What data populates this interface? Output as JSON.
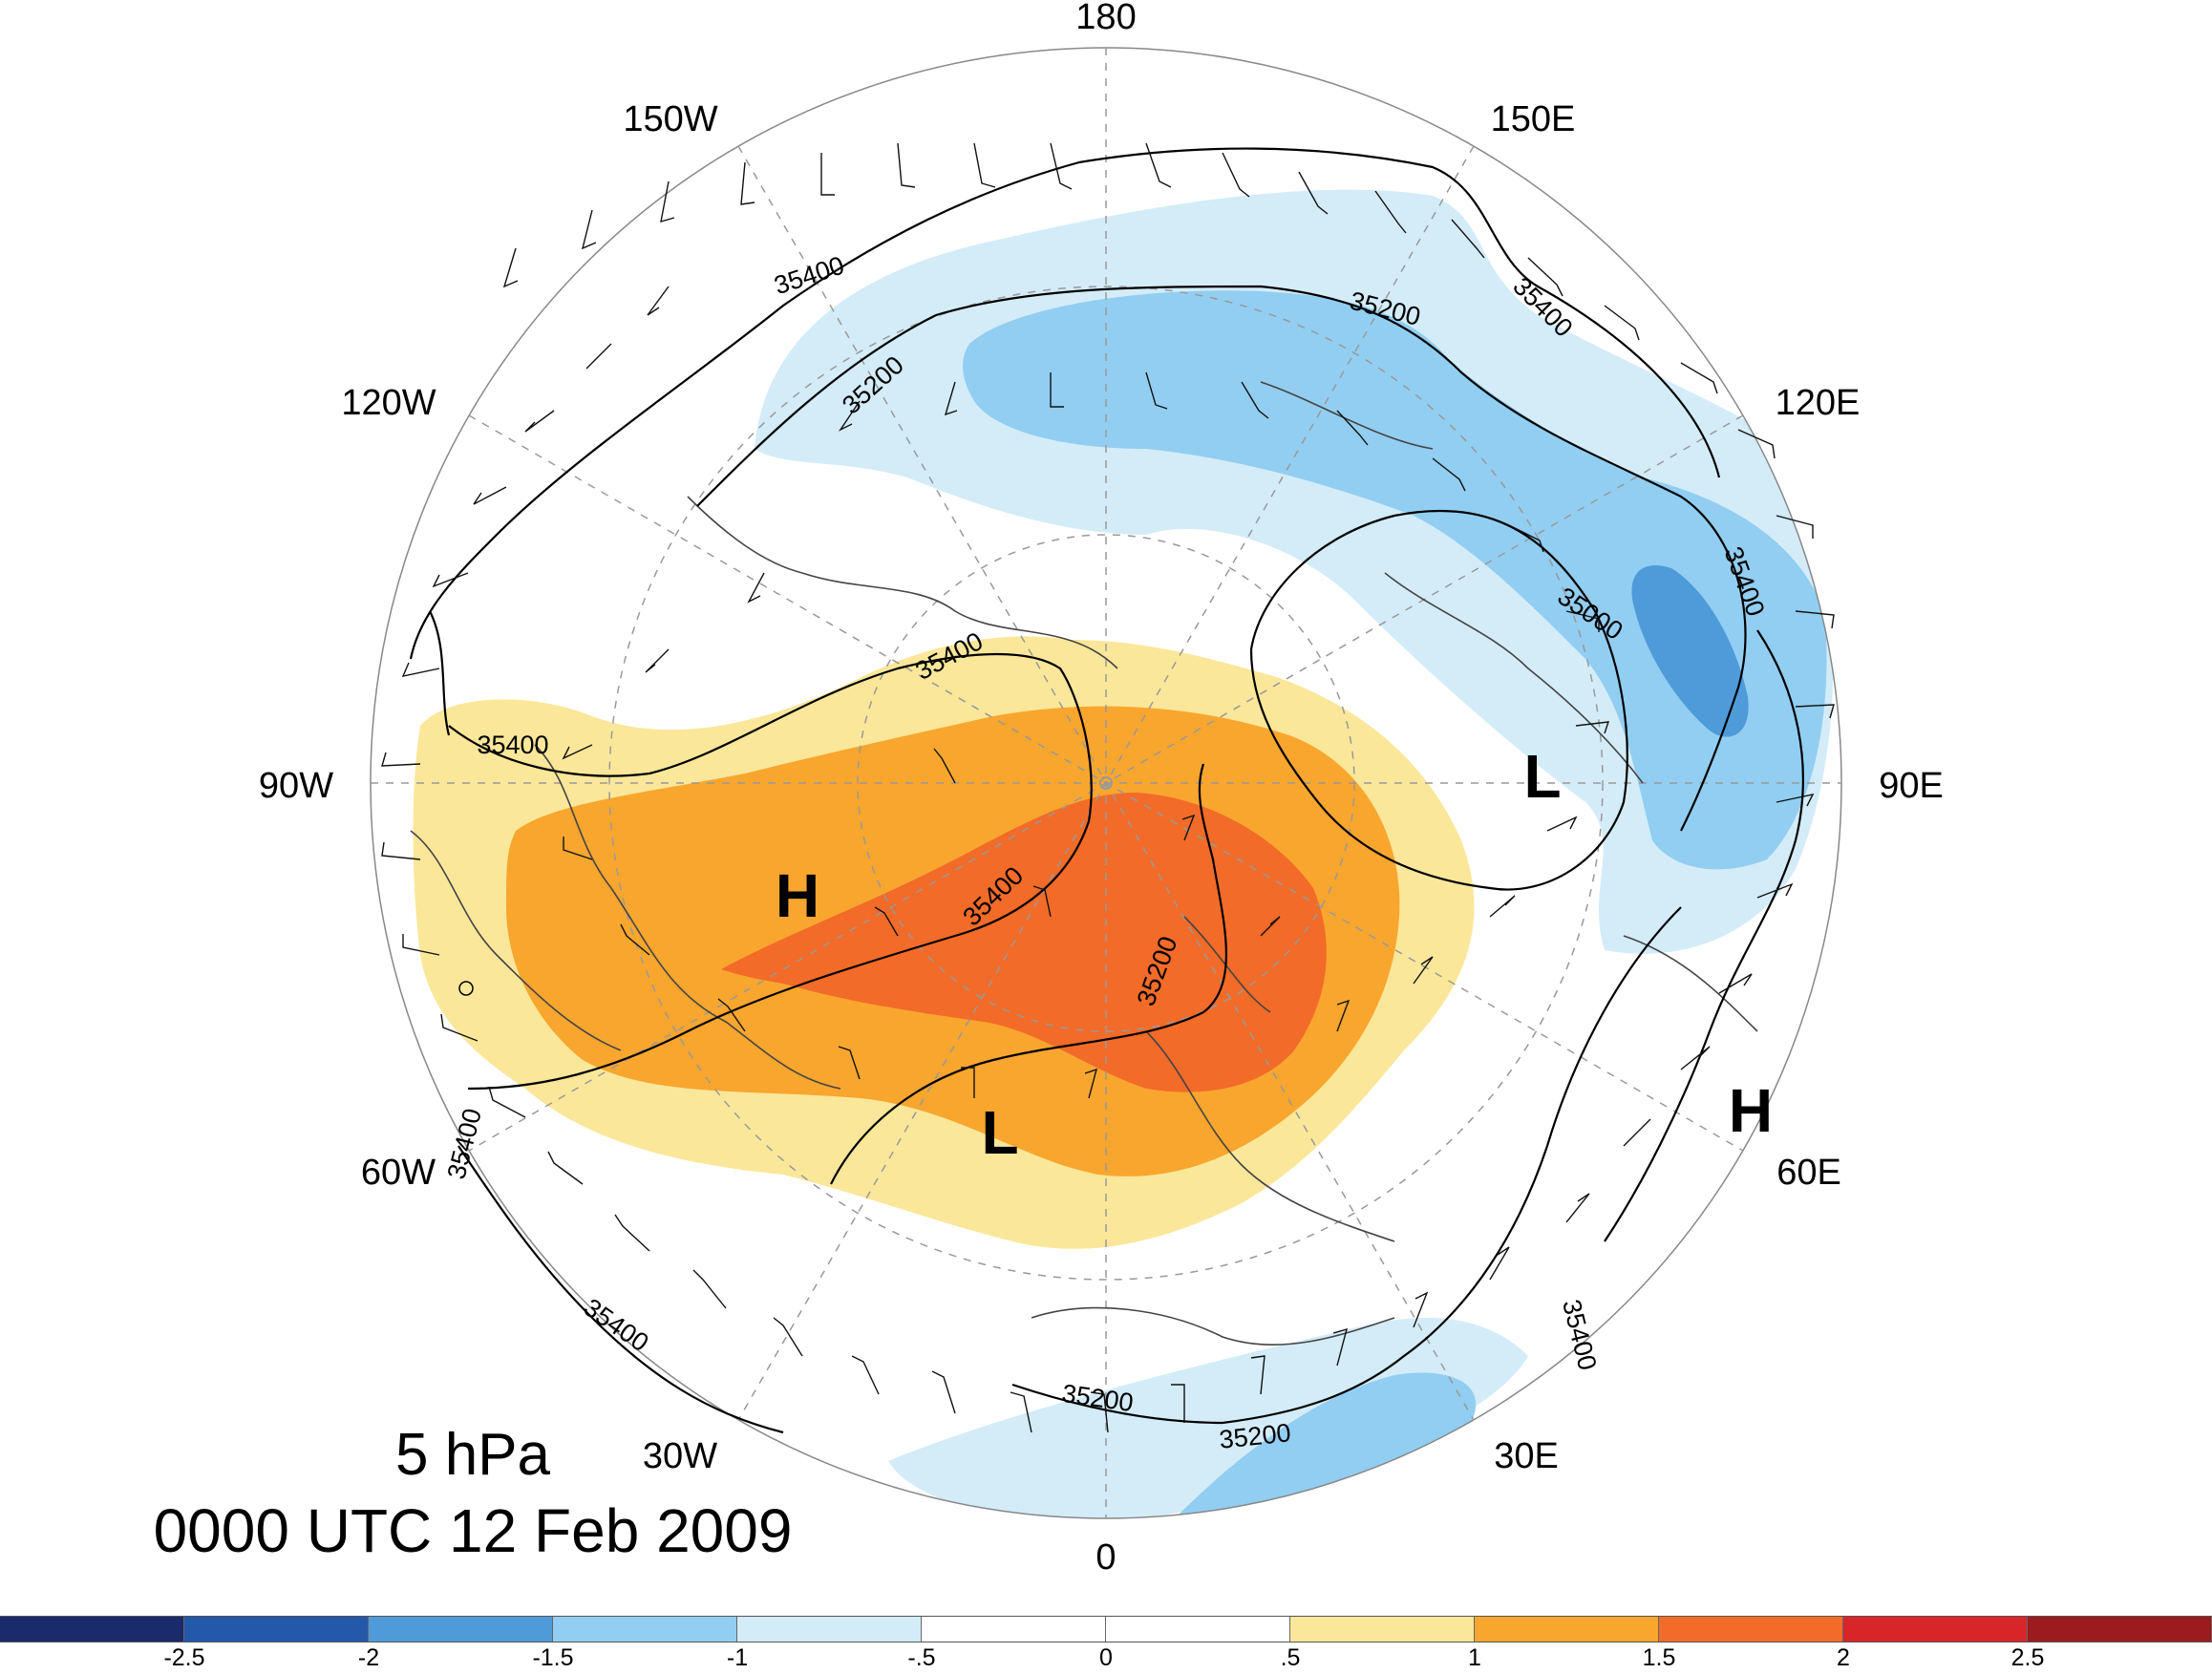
{
  "map": {
    "level": "5 hPa",
    "time": "0000 UTC 12 Feb 2009",
    "longitude_labels": [
      "180",
      "150E",
      "120E",
      "90E",
      "60E",
      "30E",
      "0",
      "30W",
      "60W",
      "90W",
      "120W",
      "150W"
    ],
    "contour_labels": [
      "35400",
      "35200",
      "35200",
      "35400",
      "35400",
      "35400",
      "35400",
      "35200",
      "35000",
      "35400",
      "35400",
      "35200",
      "35200",
      "35400",
      "35400"
    ],
    "markers": [
      "H",
      "L",
      "L",
      "H"
    ],
    "colorbar": {
      "colors": [
        "#1b2a6b",
        "#2458a8",
        "#4f9bd9",
        "#92cef1",
        "#d3ecf8",
        "#ffffff",
        "#ffffff",
        "#fbe79a",
        "#f9a62f",
        "#f26b28",
        "#d7252a",
        "#9b1b1e"
      ],
      "tick_labels": [
        "-2.5",
        "-2",
        "-1.5",
        "-1",
        "-.5",
        "0",
        ".5",
        "1",
        "1.5",
        "2",
        "2.5"
      ]
    }
  }
}
